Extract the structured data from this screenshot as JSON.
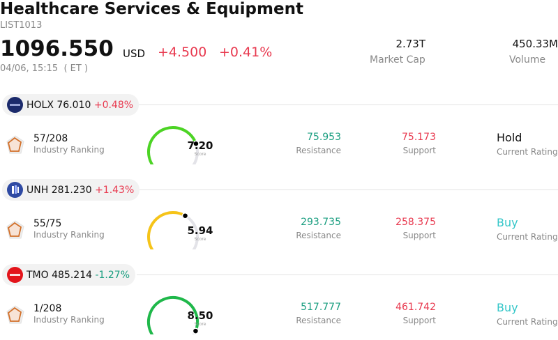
{
  "header": {
    "title": "Healthcare Services & Equipment",
    "code": "LIST1013",
    "price": "1096.550",
    "currency": "USD",
    "change": "+4.500",
    "change_pct": "+0.41%",
    "time": "04/06, 15:15  ( ET )"
  },
  "stats": [
    {
      "value": "2.73T",
      "label": "Market Cap"
    },
    {
      "value": "450.33M",
      "label": "Volume"
    }
  ],
  "stocks": [
    {
      "ticker": "HOLX",
      "price": "76.010",
      "change": "+0.48%",
      "direction": "up",
      "logo_color": "#1b2a6b",
      "rank": "57/208",
      "rank_label": "Industry Ranking",
      "score": "7.20",
      "score_value": 7.2,
      "score_label": "Score",
      "gauge_color": "#4cd424",
      "resistance": "75.953",
      "resistance_label": "Resistance",
      "support": "75.173",
      "support_label": "Support",
      "rating": "Hold",
      "rating_label": "Current Rating",
      "rating_color": "#111111"
    },
    {
      "ticker": "UNH",
      "price": "281.230",
      "change": "+1.43%",
      "direction": "up",
      "logo_color": "#2f4aa3",
      "rank": "55/75",
      "rank_label": "Industry Ranking",
      "score": "5.94",
      "score_value": 5.94,
      "score_label": "Score",
      "gauge_color": "#f6c418",
      "resistance": "293.735",
      "resistance_label": "Resistance",
      "support": "258.375",
      "support_label": "Support",
      "rating": "Buy",
      "rating_label": "Current Rating",
      "rating_color": "#33c6c8"
    },
    {
      "ticker": "TMO",
      "price": "485.214",
      "change": "-1.27%",
      "direction": "down",
      "logo_color": "#e3141b",
      "rank": "1/208",
      "rank_label": "Industry Ranking",
      "score": "8.50",
      "score_value": 8.5,
      "score_label": "Score",
      "gauge_color": "#1fb84a",
      "resistance": "517.777",
      "resistance_label": "Resistance",
      "support": "461.742",
      "support_label": "Support",
      "rating": "Buy",
      "rating_label": "Current Rating",
      "rating_color": "#33c6c8"
    }
  ],
  "colors": {
    "up": "#e8394f",
    "down": "#1a9e80",
    "gauge_track": "#e3e3e8"
  }
}
